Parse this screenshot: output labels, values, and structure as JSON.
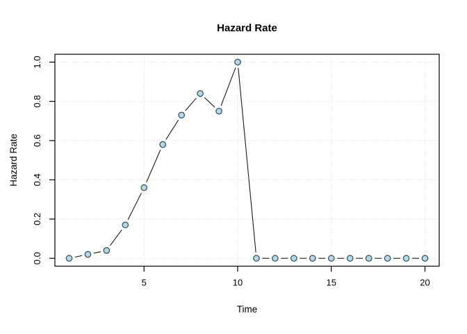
{
  "chart_data": {
    "type": "line",
    "title": "Hazard Rate",
    "xlabel": "Time",
    "ylabel": "Hazard Rate",
    "x": [
      1,
      2,
      3,
      4,
      5,
      6,
      7,
      8,
      9,
      10,
      11,
      12,
      13,
      14,
      15,
      16,
      17,
      18,
      19,
      20
    ],
    "y": [
      0.0,
      0.02,
      0.04,
      0.17,
      0.36,
      0.58,
      0.73,
      0.84,
      0.75,
      1.0,
      0.0,
      0.0,
      0.0,
      0.0,
      0.0,
      0.0,
      0.0,
      0.0,
      0.0,
      0.0
    ],
    "x_ticks": [
      5,
      10,
      15,
      20
    ],
    "y_ticks": [
      0.0,
      0.2,
      0.4,
      0.6,
      0.8,
      1.0
    ],
    "y_tick_labels": [
      "0.0",
      "0.2",
      "0.4",
      "0.6",
      "0.8",
      "1.0"
    ],
    "xlim": [
      0.24,
      20.76
    ],
    "ylim": [
      -0.04,
      1.04
    ],
    "grid": true,
    "legend_position": "none",
    "marker_shape": "circle",
    "line_style": "solid-with-gaps-around-points",
    "colors": {
      "line": "#1a1a1a",
      "marker_fill": "#b4d8e4",
      "marker_stroke": "#2c4a55",
      "grid": "#d7d7d7",
      "box": "#000000",
      "background": "#ffffff"
    }
  }
}
